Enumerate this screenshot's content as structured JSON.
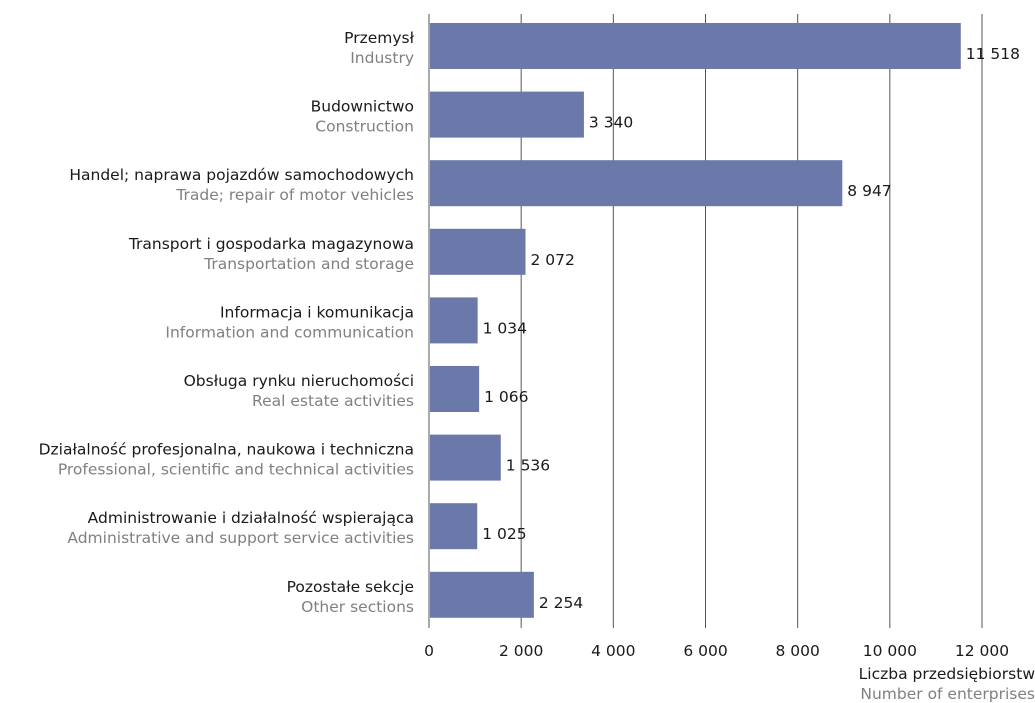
{
  "chart_data": {
    "type": "bar",
    "orientation": "horizontal",
    "title": "",
    "categories": [
      {
        "pl": "Przemysł",
        "en": "Industry"
      },
      {
        "pl": "Budownictwo",
        "en": "Construction"
      },
      {
        "pl": "Handel; naprawa pojazdów samochodowych",
        "en": "Trade; repair of motor vehicles"
      },
      {
        "pl": "Transport i gospodarka magazynowa",
        "en": "Transportation and storage"
      },
      {
        "pl": "Informacja i komunikacja",
        "en": "Information and communication"
      },
      {
        "pl": "Obsługa rynku nieruchomości",
        "en": "Real estate activities"
      },
      {
        "pl": "Działalność profesjonalna, naukowa i techniczna",
        "en": "Professional, scientific and technical activities"
      },
      {
        "pl": "Administrowanie i działalność wspierająca",
        "en": "Administrative and support service activities"
      },
      {
        "pl": "Pozostałe sekcje",
        "en": "Other sections"
      }
    ],
    "values": [
      11518,
      3340,
      8947,
      2072,
      1034,
      1066,
      1536,
      1025,
      2254
    ],
    "value_labels": [
      "11 518",
      "3 340",
      "8 947",
      "2 072",
      "1 034",
      "1 066",
      "1 536",
      "1 025",
      "2 254"
    ],
    "xlim": [
      0,
      12000
    ],
    "xticks": [
      0,
      2000,
      4000,
      6000,
      8000,
      10000,
      12000
    ],
    "xtick_labels": [
      "0",
      "2 000",
      "4 000",
      "6 000",
      "8 000",
      "10 000",
      "12 000"
    ],
    "xlabel_pl": "Liczba przedsiębiorstw",
    "xlabel_en": "Number of enterprises",
    "grid": "vertical",
    "legend": "none",
    "bar_color": "#6b78aa",
    "grid_color": "#555555"
  }
}
